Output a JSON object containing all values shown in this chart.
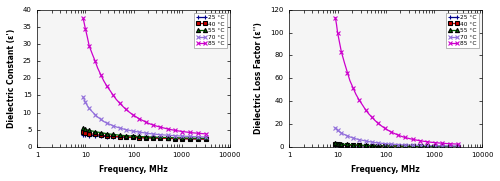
{
  "xlabel": "Frequency, MHz",
  "ylabel_left": "Dielectric Constant (ε')",
  "ylabel_right": "Dielectric Loss Factor (ε'')",
  "xlim": [
    1,
    10000
  ],
  "ylim_left": [
    0,
    40
  ],
  "ylim_right": [
    0,
    120
  ],
  "yticks_left": [
    0,
    5,
    10,
    15,
    20,
    25,
    30,
    35,
    40
  ],
  "yticks_right": [
    0,
    20,
    40,
    60,
    80,
    100,
    120
  ],
  "legend_labels": [
    "25 °C",
    "40 °C",
    "55 °C",
    "70 °C",
    "85 °C"
  ],
  "colors": [
    "#00008B",
    "#CC0000",
    "#006400",
    "#9370DB",
    "#CC00CC"
  ],
  "markers": [
    "+",
    "s",
    "^",
    "x",
    "x"
  ],
  "freq_points": [
    9,
    9.5,
    10,
    11,
    12,
    14,
    16,
    18,
    21,
    24,
    28,
    33,
    38,
    44,
    52,
    60,
    70,
    82,
    96,
    112,
    130,
    155,
    180,
    210,
    250,
    300,
    360,
    430,
    510,
    610,
    730,
    870,
    1040,
    1250,
    1500,
    1800,
    2200,
    2700,
    3200
  ],
  "dc_25": [
    3.5,
    3.45,
    3.4,
    3.35,
    3.3,
    3.25,
    3.2,
    3.15,
    3.1,
    3.05,
    3.0,
    2.97,
    2.94,
    2.91,
    2.88,
    2.85,
    2.82,
    2.79,
    2.76,
    2.73,
    2.7,
    2.67,
    2.64,
    2.61,
    2.58,
    2.55,
    2.52,
    2.5,
    2.48,
    2.46,
    2.44,
    2.42,
    2.4,
    2.38,
    2.36,
    2.34,
    2.32,
    2.3,
    2.28
  ],
  "dc_40": [
    4.2,
    4.1,
    4.0,
    3.9,
    3.8,
    3.7,
    3.6,
    3.5,
    3.4,
    3.3,
    3.2,
    3.1,
    3.05,
    3.0,
    2.95,
    2.9,
    2.85,
    2.8,
    2.75,
    2.72,
    2.69,
    2.66,
    2.63,
    2.6,
    2.57,
    2.54,
    2.51,
    2.48,
    2.46,
    2.44,
    2.42,
    2.4,
    2.38,
    2.36,
    2.34,
    2.32,
    2.3,
    2.28,
    2.26
  ],
  "dc_55": [
    5.5,
    5.3,
    5.1,
    4.95,
    4.8,
    4.6,
    4.45,
    4.3,
    4.15,
    4.0,
    3.85,
    3.72,
    3.6,
    3.5,
    3.4,
    3.32,
    3.24,
    3.18,
    3.12,
    3.07,
    3.02,
    2.97,
    2.92,
    2.88,
    2.84,
    2.8,
    2.76,
    2.73,
    2.7,
    2.67,
    2.64,
    2.61,
    2.59,
    2.56,
    2.54,
    2.52,
    2.5,
    2.48,
    2.46
  ],
  "dc_70": [
    14.5,
    13.8,
    13.0,
    12.0,
    11.2,
    10.2,
    9.4,
    8.7,
    8.0,
    7.4,
    6.9,
    6.5,
    6.1,
    5.8,
    5.5,
    5.25,
    5.0,
    4.8,
    4.6,
    4.45,
    4.3,
    4.15,
    4.0,
    3.88,
    3.76,
    3.65,
    3.55,
    3.46,
    3.38,
    3.31,
    3.24,
    3.18,
    3.12,
    3.07,
    3.02,
    2.97,
    2.93,
    2.89,
    2.85
  ],
  "dc_85": [
    37.5,
    36.0,
    34.5,
    32.0,
    29.5,
    27.0,
    25.0,
    23.0,
    21.0,
    19.3,
    17.7,
    16.3,
    15.0,
    13.8,
    12.7,
    11.8,
    10.9,
    10.1,
    9.4,
    8.8,
    8.2,
    7.7,
    7.2,
    6.8,
    6.4,
    6.05,
    5.75,
    5.48,
    5.22,
    5.0,
    4.8,
    4.62,
    4.46,
    4.32,
    4.18,
    4.06,
    3.95,
    3.85,
    3.76
  ],
  "lf_25": [
    1.8,
    1.7,
    1.6,
    1.5,
    1.4,
    1.3,
    1.2,
    1.1,
    1.0,
    0.92,
    0.85,
    0.78,
    0.72,
    0.67,
    0.62,
    0.57,
    0.53,
    0.49,
    0.46,
    0.43,
    0.4,
    0.37,
    0.35,
    0.33,
    0.31,
    0.29,
    0.27,
    0.25,
    0.23,
    0.22,
    0.21,
    0.2,
    0.19,
    0.18,
    0.17,
    0.16,
    0.15,
    0.14,
    0.13
  ],
  "lf_40": [
    2.5,
    2.35,
    2.2,
    2.05,
    1.9,
    1.76,
    1.63,
    1.51,
    1.4,
    1.3,
    1.2,
    1.1,
    1.01,
    0.93,
    0.86,
    0.8,
    0.74,
    0.69,
    0.64,
    0.6,
    0.56,
    0.52,
    0.49,
    0.46,
    0.43,
    0.4,
    0.37,
    0.35,
    0.33,
    0.31,
    0.29,
    0.27,
    0.26,
    0.24,
    0.23,
    0.21,
    0.2,
    0.19,
    0.18
  ],
  "lf_55": [
    3.2,
    3.0,
    2.8,
    2.6,
    2.4,
    2.2,
    2.05,
    1.9,
    1.76,
    1.63,
    1.51,
    1.4,
    1.3,
    1.21,
    1.12,
    1.04,
    0.97,
    0.9,
    0.84,
    0.79,
    0.74,
    0.69,
    0.65,
    0.61,
    0.57,
    0.54,
    0.51,
    0.48,
    0.45,
    0.43,
    0.4,
    0.38,
    0.36,
    0.34,
    0.32,
    0.3,
    0.29,
    0.27,
    0.26
  ],
  "lf_70": [
    16.5,
    15.5,
    14.5,
    13.2,
    12.0,
    10.7,
    9.6,
    8.7,
    7.8,
    7.0,
    6.3,
    5.7,
    5.1,
    4.6,
    4.15,
    3.75,
    3.4,
    3.1,
    2.82,
    2.57,
    2.35,
    2.15,
    1.97,
    1.81,
    1.67,
    1.55,
    1.44,
    1.34,
    1.26,
    1.18,
    1.11,
    1.05,
    0.99,
    0.94,
    0.89,
    0.84,
    0.8,
    0.76,
    0.72
  ],
  "lf_85": [
    113.0,
    107.0,
    100.0,
    91.0,
    83.0,
    73.0,
    65.0,
    58.0,
    51.5,
    46.0,
    41.0,
    36.5,
    32.5,
    29.0,
    25.8,
    23.0,
    20.5,
    18.2,
    16.2,
    14.5,
    12.9,
    11.5,
    10.3,
    9.2,
    8.2,
    7.35,
    6.6,
    5.95,
    5.38,
    4.87,
    4.42,
    4.03,
    3.7,
    3.4,
    3.14,
    2.9,
    2.7,
    2.52,
    2.36
  ]
}
